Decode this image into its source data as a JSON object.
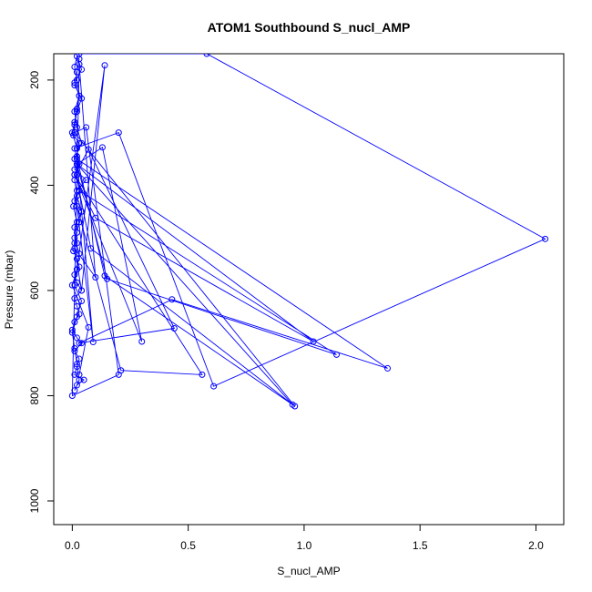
{
  "chart_data": {
    "type": "line",
    "title": "ATOM1 Southbound S_nucl_AMP",
    "xlabel": "S_nucl_AMP",
    "ylabel": "Pressure (mbar)",
    "xlim": [
      -0.08,
      2.12
    ],
    "ylim": [
      1045,
      150
    ],
    "y_reversed": true,
    "x_ticks": [
      "0.0",
      "0.5",
      "1.0",
      "1.5",
      "2.0"
    ],
    "y_ticks": [
      "200",
      "400",
      "600",
      "800",
      "1000"
    ],
    "x_tick_values": [
      0,
      0.5,
      1.0,
      1.5,
      2.0
    ],
    "y_tick_values": [
      200,
      400,
      600,
      800,
      1000
    ],
    "grid": false,
    "legend": "none",
    "marker": "open-circle",
    "color": "#0000ff",
    "series": [
      {
        "x": [
          0.03,
          0.02,
          0.01,
          0.04,
          0.02,
          0.01,
          0.005,
          0.03,
          0.02,
          0.01,
          0.06,
          0.02,
          0.01,
          0.04,
          0.03,
          0.02,
          0.01,
          0.005,
          0.02,
          0.03,
          0.01,
          0.02,
          0.04,
          0.01,
          0.02,
          0.03,
          0.01,
          0.0,
          0.02,
          0.04,
          0.01,
          0.03,
          0.02,
          0.01,
          0.05,
          0.02,
          0.01,
          0.03,
          0.02,
          0.01,
          0.0,
          0.02,
          0.04,
          0.01,
          0.02,
          0.03,
          0.01,
          0.02,
          0.005,
          0.03,
          0.02,
          0.01,
          0.04,
          0.02,
          0.01,
          0.03,
          0.02,
          0.01,
          0.02,
          0.04,
          0.01,
          0.03,
          0.02,
          0.01,
          0.0,
          0.02,
          0.03,
          0.01,
          0.02,
          0.04,
          0.01,
          0.02
        ],
        "y": [
          160,
          185,
          210,
          235,
          260,
          285,
          305,
          320,
          345,
          370,
          390,
          410,
          430,
          450,
          470,
          490,
          510,
          525,
          540,
          555,
          570,
          585,
          600,
          615,
          630,
          645,
          660,
          675,
          690,
          700,
          715,
          730,
          745,
          760,
          770,
          780,
          790,
          770,
          740,
          710,
          680,
          650,
          620,
          590,
          560,
          530,
          500,
          470,
          440,
          410,
          380,
          350,
          320,
          290,
          260,
          230,
          200,
          175,
          155,
          180,
          205,
          230,
          255,
          280,
          300,
          330,
          360,
          390,
          420,
          450,
          480,
          510
        ]
      },
      {
        "x": [
          0.03,
          0.58,
          2.04,
          0.61,
          0.2,
          0.01,
          0.14,
          0.95,
          0.02,
          0.13,
          0.3,
          0.01,
          0.07,
          0.44,
          0.03,
          0.43,
          1.36,
          0.02,
          0.09,
          0.02,
          0.21,
          0.56,
          0.01,
          0.1,
          1.04,
          0.02,
          0.15,
          1.14,
          0.03,
          0.08,
          0.96,
          0.01,
          0.06,
          0.2,
          0.0,
          0.03,
          0.1,
          0.01,
          0.04,
          0.14,
          0.02,
          0.0,
          0.07,
          0.03
        ],
        "y": [
          150,
          150,
          502,
          782,
          300,
          330,
          572,
          817,
          360,
          328,
          697,
          380,
          332,
          672,
          700,
          617,
          748,
          350,
          698,
          440,
          752,
          760,
          380,
          462,
          697,
          360,
          578,
          722,
          410,
          520,
          820,
          300,
          290,
          760,
          800,
          170,
          575,
          520,
          600,
          172,
          560,
          590,
          670,
          760
        ]
      }
    ]
  }
}
